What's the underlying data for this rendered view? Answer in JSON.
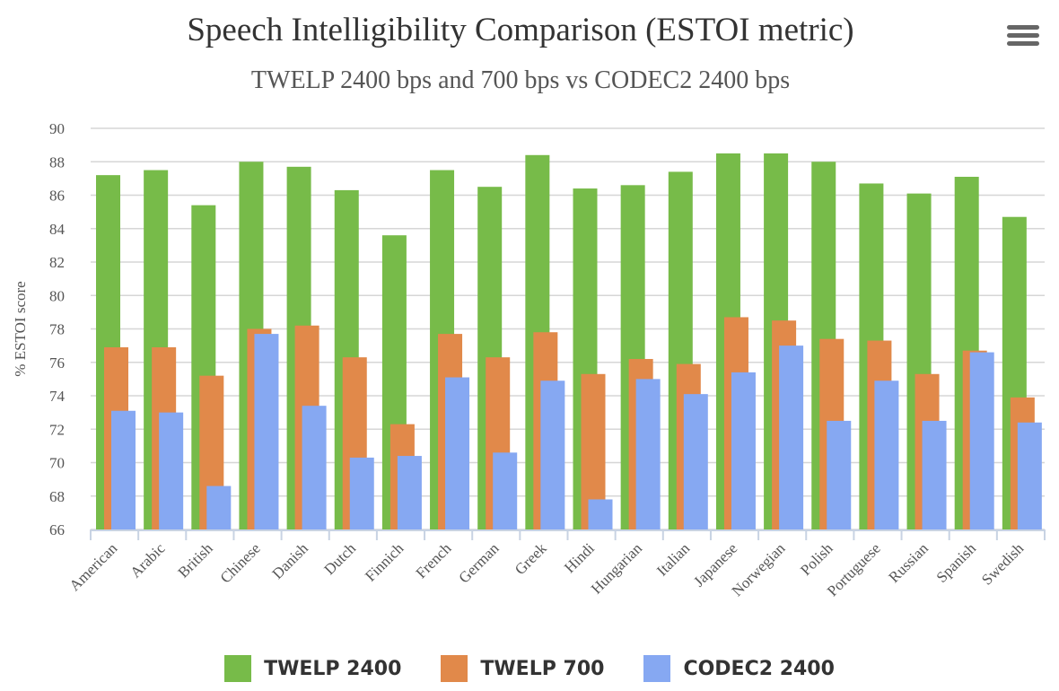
{
  "chart_data": {
    "type": "bar",
    "title": "Speech Intelligibility Comparison (ESTOI metric)",
    "subtitle": "TWELP 2400 bps and 700 bps vs CODEC2 2400 bps",
    "xlabel": "",
    "ylabel": "% ESTOI score",
    "ylim": [
      66,
      90
    ],
    "yticks": [
      66,
      68,
      70,
      72,
      74,
      76,
      78,
      80,
      82,
      84,
      86,
      88,
      90
    ],
    "grid": true,
    "legend_position": "bottom",
    "categories": [
      "American",
      "Arabic",
      "British",
      "Chinese",
      "Danish",
      "Dutch",
      "Finnich",
      "French",
      "German",
      "Greek",
      "Hindi",
      "Hungarian",
      "Italian",
      "Japanese",
      "Norwegian",
      "Polish",
      "Portuguese",
      "Russian",
      "Spanish",
      "Swedish"
    ],
    "series": [
      {
        "name": "TWELP 2400",
        "color": "#77bb49",
        "values": [
          87.2,
          87.5,
          85.4,
          88.0,
          87.7,
          86.3,
          83.6,
          87.5,
          86.5,
          88.4,
          86.4,
          86.6,
          87.4,
          88.5,
          88.5,
          88.0,
          86.7,
          86.1,
          87.1,
          84.7
        ]
      },
      {
        "name": "TWELP 700",
        "color": "#e1894a",
        "values": [
          76.9,
          76.9,
          75.2,
          78.0,
          78.2,
          76.3,
          72.3,
          77.7,
          76.3,
          77.8,
          75.3,
          76.2,
          75.9,
          78.7,
          78.5,
          77.4,
          77.3,
          75.3,
          76.7,
          73.9
        ]
      },
      {
        "name": "CODEC2 2400",
        "color": "#86a8f2",
        "values": [
          73.1,
          73.0,
          68.6,
          77.7,
          73.4,
          70.3,
          70.4,
          75.1,
          70.6,
          74.9,
          67.8,
          75.0,
          74.1,
          75.4,
          77.0,
          72.5,
          74.9,
          72.5,
          76.6,
          72.4
        ]
      }
    ]
  },
  "menu": {
    "icon": "hamburger-menu-icon"
  }
}
